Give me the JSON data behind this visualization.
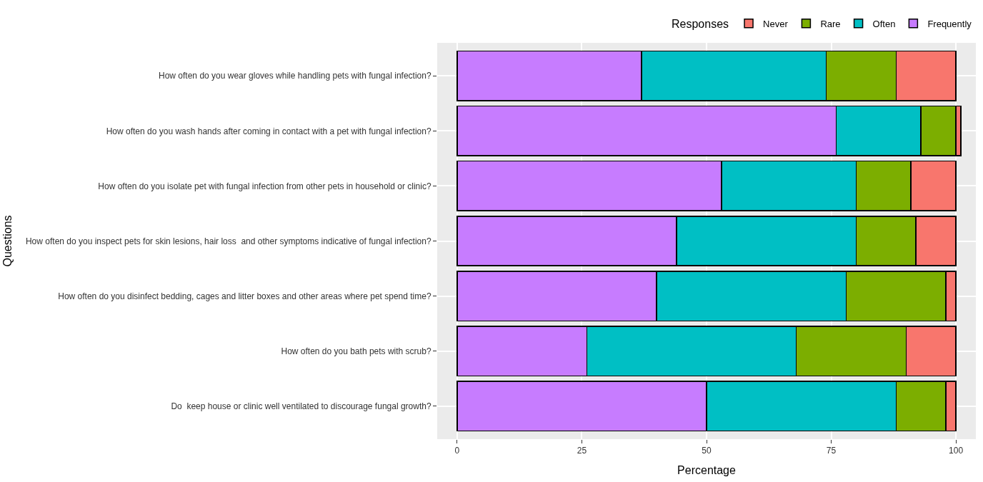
{
  "chart_data": {
    "type": "bar",
    "orientation": "horizontal",
    "stacked": true,
    "xlabel": "Percentage",
    "ylabel": "Questions",
    "legend_title": "Responses",
    "legend": "top",
    "grid": true,
    "categories": [
      "How often do you wear gloves while handling pets with fungal infection?",
      "How often do you wash hands after coming in contact with a pet with fungal infection?",
      "How often do you isolate pet with fungal infection from other pets in household or clinic?",
      "How often do you inspect pets for skin lesions, hair loss  and other symptoms indicative of fungal infection?",
      "How often do you disinfect bedding, cages and litter boxes and other areas where pet spend time?",
      "How often do you bath pets with scrub?",
      "Do  keep house or clinic well ventilated to discourage fungal growth?"
    ],
    "series": [
      {
        "name": "Frequently",
        "color": "#c77cff",
        "values": [
          37,
          76,
          53,
          44,
          40,
          26,
          50
        ]
      },
      {
        "name": "Often",
        "color": "#00bfc4",
        "values": [
          37,
          17,
          27,
          36,
          38,
          42,
          38
        ]
      },
      {
        "name": "Rare",
        "color": "#7cae00",
        "values": [
          14,
          7,
          11,
          12,
          20,
          22,
          10
        ]
      },
      {
        "name": "Never",
        "color": "#f8766d",
        "values": [
          12,
          1,
          9,
          8,
          2,
          10,
          2
        ]
      }
    ],
    "xlim": [
      -4,
      104
    ],
    "xticks": [
      0,
      25,
      50,
      75,
      100
    ]
  }
}
